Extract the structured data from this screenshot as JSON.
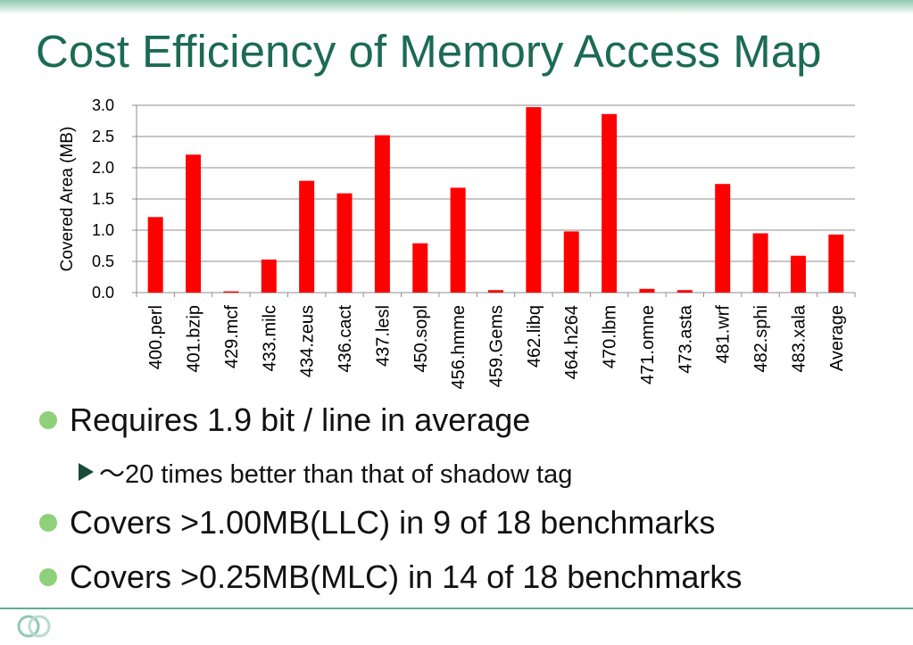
{
  "slide": {
    "title": "Cost Efficiency of Memory Access Map"
  },
  "bullets": [
    {
      "text": "Requires 1.9 bit / line in average"
    },
    {
      "text": "Covers >1.00MB(LLC) in 9 of 18 benchmarks"
    },
    {
      "text": "Covers >0.25MB(MLC) in 14 of 18 benchmarks"
    }
  ],
  "sub_bullets": [
    {
      "text": "～20 times better than that of shadow tag"
    }
  ],
  "chart_data": {
    "type": "bar",
    "title": "",
    "xlabel": "",
    "ylabel": "Covered Area (MB)",
    "ylim": [
      0,
      3.0
    ],
    "yticks": [
      "0.0",
      "0.5",
      "1.0",
      "1.5",
      "2.0",
      "2.5",
      "3.0"
    ],
    "grid": true,
    "bar_color": "#ff0000",
    "categories": [
      "400.perl",
      "401.bzip",
      "429.mcf",
      "433.milc",
      "434.zeus",
      "436.cact",
      "437.lesl",
      "450.sopl",
      "456.hmme",
      "459.Gems",
      "462.libq",
      "464.h264",
      "470.lbm",
      "471.omne",
      "473.asta",
      "481.wrf",
      "482.sphi",
      "483.xala",
      "Average"
    ],
    "values": [
      1.21,
      2.21,
      0.02,
      0.53,
      1.79,
      1.59,
      2.52,
      0.79,
      1.68,
      0.04,
      2.97,
      0.98,
      2.86,
      0.06,
      0.04,
      1.74,
      0.95,
      0.59,
      0.93
    ]
  },
  "colors": {
    "title": "#1c6b54",
    "bullet_dot": "#8ed17a",
    "sub_bullet_arrow": "#174a38",
    "accent_line": "#5fae8e"
  }
}
